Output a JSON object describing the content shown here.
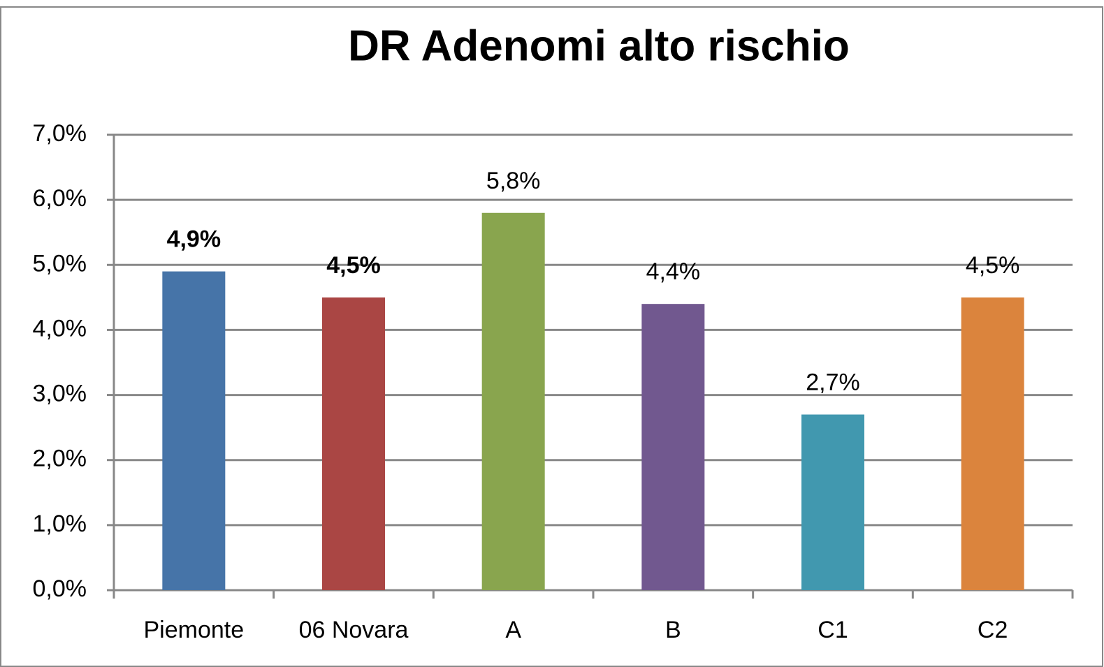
{
  "chart_data": {
    "type": "bar",
    "title": "DR Adenomi alto rischio",
    "categories": [
      "Piemonte",
      "06 Novara",
      "A",
      "B",
      "C1",
      "C2"
    ],
    "values": [
      4.9,
      4.5,
      5.8,
      4.4,
      2.7,
      4.5
    ],
    "value_labels": [
      "4,9%",
      "4,5%",
      "5,8%",
      "4,4%",
      "2,7%",
      "4,5%"
    ],
    "value_label_bold": [
      true,
      true,
      false,
      false,
      false,
      false
    ],
    "colors": [
      "#4674a8",
      "#aa4644",
      "#89a54e",
      "#71588f",
      "#4198af",
      "#db843d"
    ],
    "ylim": [
      0,
      7
    ],
    "yticks": [
      {
        "value": 0,
        "label": "0,0%"
      },
      {
        "value": 1,
        "label": "1,0%"
      },
      {
        "value": 2,
        "label": "2,0%"
      },
      {
        "value": 3,
        "label": "3,0%"
      },
      {
        "value": 4,
        "label": "4,0%"
      },
      {
        "value": 5,
        "label": "5,0%"
      },
      {
        "value": 6,
        "label": "6,0%"
      },
      {
        "value": 7,
        "label": "7,0%"
      }
    ],
    "grid": true
  }
}
